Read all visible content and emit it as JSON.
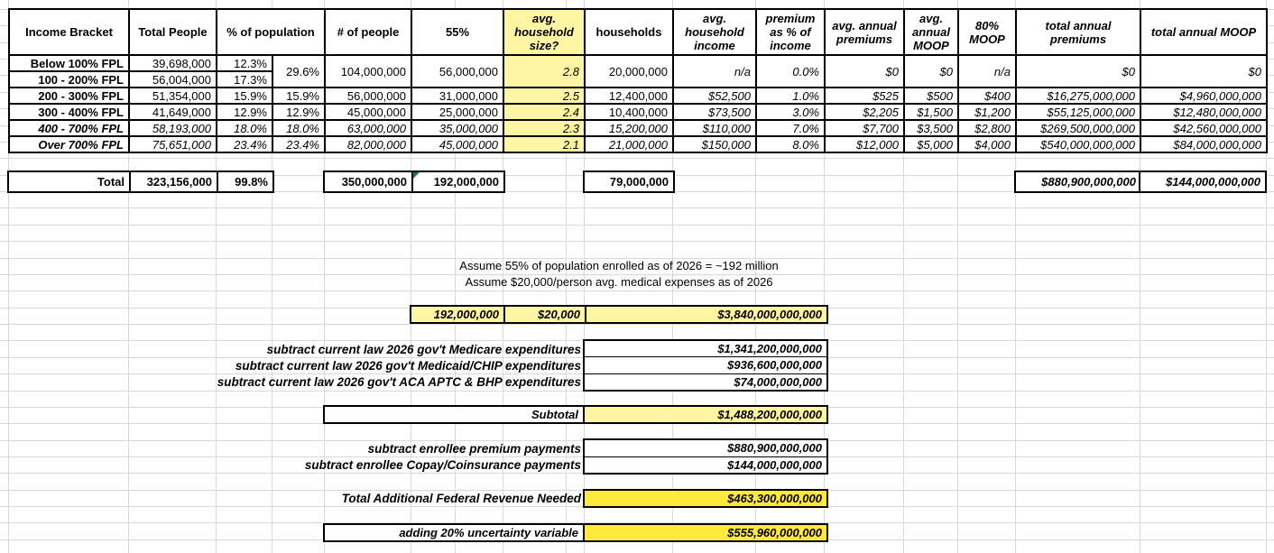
{
  "colors": {
    "pale_yellow": "#fff6a4",
    "bright_yellow": "#ffe93b",
    "gridline": "#d9d9d9",
    "table_border": "#000000",
    "note_green": "#1e7e34"
  },
  "table": {
    "headers": {
      "income_bracket": "Income Bracket",
      "total_people": "Total People",
      "pct_population": "% of population",
      "num_people": "# of people",
      "pct_55": "55%",
      "avg_household_size": "avg. household size?",
      "households": "households",
      "avg_household_income": "avg. household income",
      "premium_pct_income": "premium as % of income",
      "avg_annual_premiums": "avg. annual premiums",
      "avg_annual_moop": "avg. annual MOOP",
      "moop_80": "80% MOOP",
      "total_annual_premiums": "total annual premiums",
      "total_annual_moop": "total annual MOOP"
    },
    "merged_12": {
      "pct_b": "29.6%",
      "num_people": "104,000,000",
      "enrolled_55": "56,000,000",
      "household_size": "2.8",
      "households": "20,000,000",
      "avg_income": "n/a",
      "premium_pct": "0.0%",
      "avg_premium": "$0",
      "avg_moop": "$0",
      "moop_80": "n/a",
      "total_premiums": "$0",
      "total_moop": "$0"
    },
    "rows": [
      {
        "bracket": "Below 100% FPL",
        "total_people": "39,698,000",
        "pct_a": "12.3%"
      },
      {
        "bracket": "100 - 200% FPL",
        "total_people": "56,004,000",
        "pct_a": "17.3%"
      },
      {
        "bracket": "200 - 300% FPL",
        "total_people": "51,354,000",
        "pct_a": "15.9%",
        "pct_b": "15.9%",
        "num_people": "56,000,000",
        "enrolled_55": "31,000,000",
        "household_size": "2.5",
        "households": "12,400,000",
        "avg_income": "$52,500",
        "premium_pct": "1.0%",
        "avg_premium": "$525",
        "avg_moop": "$500",
        "moop_80": "$400",
        "total_premiums": "$16,275,000,000",
        "total_moop": "$4,960,000,000"
      },
      {
        "bracket": "300 - 400% FPL",
        "total_people": "41,649,000",
        "pct_a": "12.9%",
        "pct_b": "12.9%",
        "num_people": "45,000,000",
        "enrolled_55": "25,000,000",
        "household_size": "2.4",
        "households": "10,400,000",
        "avg_income": "$73,500",
        "premium_pct": "3.0%",
        "avg_premium": "$2,205",
        "avg_moop": "$1,500",
        "moop_80": "$1,200",
        "total_premiums": "$55,125,000,000",
        "total_moop": "$12,480,000,000"
      },
      {
        "bracket": "400 - 700% FPL",
        "total_people": "58,193,000",
        "pct_a": "18.0%",
        "pct_b": "18.0%",
        "num_people": "63,000,000",
        "enrolled_55": "35,000,000",
        "household_size": "2.3",
        "households": "15,200,000",
        "avg_income": "$110,000",
        "premium_pct": "7.0%",
        "avg_premium": "$7,700",
        "avg_moop": "$3,500",
        "moop_80": "$2,800",
        "total_premiums": "$269,500,000,000",
        "total_moop": "$42,560,000,000"
      },
      {
        "bracket": "Over 700% FPL",
        "total_people": "75,651,000",
        "pct_a": "23.4%",
        "pct_b": "23.4%",
        "num_people": "82,000,000",
        "enrolled_55": "45,000,000",
        "household_size": "2.1",
        "households": "21,000,000",
        "avg_income": "$150,000",
        "premium_pct": "8.0%",
        "avg_premium": "$12,000",
        "avg_moop": "$5,000",
        "moop_80": "$4,000",
        "total_premiums": "$540,000,000,000",
        "total_moop": "$84,000,000,000"
      }
    ],
    "total": {
      "label": "Total",
      "total_people": "323,156,000",
      "pct": "99.8%",
      "num_people": "350,000,000",
      "enrolled_55": "192,000,000",
      "households": "79,000,000",
      "total_premiums": "$880,900,000,000",
      "total_moop": "$144,000,000,000"
    }
  },
  "calc": {
    "assumptions": {
      "line1": "Assume 55% of population enrolled as of 2026 = ~192 million",
      "line2": "Assume $20,000/person avg. medical expenses as of 2026"
    },
    "base_row": {
      "enrolled": "192,000,000",
      "per_person": "$20,000",
      "total": "$3,840,000,000,000"
    },
    "subtract_gov": [
      {
        "label": "subtract current law 2026 gov't Medicare expenditures",
        "value": "$1,341,200,000,000"
      },
      {
        "label": "subtract current law 2026 gov't Medicaid/CHIP expenditures",
        "value": "$936,600,000,000"
      },
      {
        "label": "subtract current law 2026 gov't ACA APTC & BHP expenditures",
        "value": "$74,000,000,000"
      }
    ],
    "subtotal": {
      "label": "Subtotal",
      "value": "$1,488,200,000,000"
    },
    "subtract_enrollee": [
      {
        "label": "subtract enrollee premium payments",
        "value": "$880,900,000,000"
      },
      {
        "label": "subtract enrollee Copay/Coinsurance payments",
        "value": "$144,000,000,000"
      }
    ],
    "total_needed": {
      "label": "Total Additional Federal Revenue Needed",
      "value": "$463,300,000,000"
    },
    "uncertainty": {
      "label": "adding 20% uncertainty variable",
      "value": "$555,960,000,000"
    }
  }
}
